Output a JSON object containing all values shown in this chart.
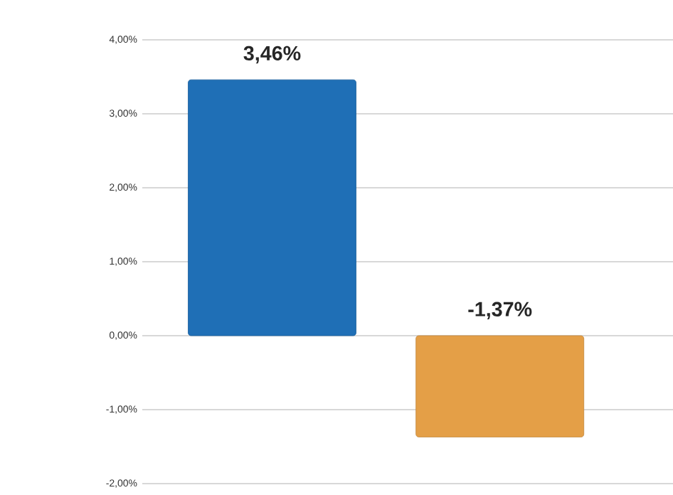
{
  "chart_data": {
    "type": "bar",
    "categories": [
      null,
      null
    ],
    "values": [
      3.46,
      -1.37
    ],
    "colors": [
      "#1f6fb6",
      "#e49f47"
    ],
    "value_labels": [
      "3,46%",
      "-1,37%"
    ],
    "ylim": [
      -2,
      4
    ],
    "yticks": [
      {
        "value": -2,
        "label": "-2,00%"
      },
      {
        "value": -1,
        "label": "-1,00%"
      },
      {
        "value": 0,
        "label": "0,00%"
      },
      {
        "value": 1,
        "label": "1,00%"
      },
      {
        "value": 2,
        "label": "2,00%"
      },
      {
        "value": 3,
        "label": "3,00%"
      },
      {
        "value": 4,
        "label": "4,00%"
      }
    ],
    "grid": "y"
  }
}
